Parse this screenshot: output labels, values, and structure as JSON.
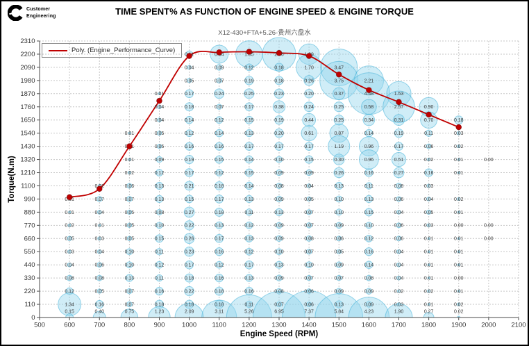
{
  "logo": {
    "line1": "Customer",
    "line2": "Engineering"
  },
  "chart_data": {
    "type": "bubble",
    "title": "TIME SPENT% AS FUNCTION OF ENGINE SPEED & ENGINE TORQUE",
    "subtitle": "X12-430+FTA+5.26-贵州六盘水",
    "xlabel": "Engine Speed (RPM)",
    "ylabel": "Torque(N.m)",
    "xlim": [
      500,
      2100
    ],
    "xtick_step": 100,
    "ylim": [
      0,
      2310
    ],
    "ytick_step": 110,
    "grid": "dashed",
    "legend_position": "top-left-inside",
    "legend_label": "Poly. (Engine_Performance_Curve)",
    "colors": {
      "curve": "#C00000",
      "marker_edge": "#8B1010",
      "bubble_fill": "#8ED5EC",
      "bubble_stroke": "#45B2D8",
      "grid": "#C6C6C6",
      "axis": "#4a4a4a",
      "tick_label": "#333333",
      "value_label": "#3C3C3C",
      "subtitle": "#595959"
    },
    "rows": [
      {
        "torque": 2200,
        "cells": [
          [
            1000,
            "0.11"
          ],
          [
            1100,
            "0.84"
          ],
          [
            1200,
            "1.85"
          ],
          [
            1300,
            "2.86"
          ],
          [
            1400,
            "1.09"
          ]
        ]
      },
      {
        "torque": 2090,
        "cells": [
          [
            1000,
            "0.04"
          ],
          [
            1100,
            "0.09"
          ],
          [
            1200,
            "0.12"
          ],
          [
            1300,
            "0.18"
          ],
          [
            1400,
            "1.70"
          ],
          [
            1500,
            "3.47"
          ]
        ]
      },
      {
        "torque": 1980,
        "cells": [
          [
            1000,
            "0.05"
          ],
          [
            1100,
            "0.07"
          ],
          [
            1200,
            "0.19"
          ],
          [
            1300,
            "0.18"
          ],
          [
            1400,
            "0.26"
          ],
          [
            1500,
            "3.75"
          ],
          [
            1600,
            "2.21"
          ]
        ]
      },
      {
        "torque": 1870,
        "cells": [
          [
            900,
            "0.01"
          ],
          [
            1000,
            "0.17"
          ],
          [
            1100,
            "0.24"
          ],
          [
            1200,
            "0.25"
          ],
          [
            1300,
            "0.23"
          ],
          [
            1400,
            "0.20"
          ],
          [
            1500,
            "0.37"
          ],
          [
            1600,
            "4.48"
          ],
          [
            1700,
            "1.53"
          ]
        ]
      },
      {
        "torque": 1760,
        "cells": [
          [
            900,
            "0.04"
          ],
          [
            1000,
            "0.18"
          ],
          [
            1100,
            "0.07"
          ],
          [
            1200,
            "0.17"
          ],
          [
            1300,
            "0.38"
          ],
          [
            1400,
            "0.24"
          ],
          [
            1500,
            "0.25"
          ],
          [
            1600,
            "0.58"
          ],
          [
            1700,
            "2.57"
          ],
          [
            1800,
            "0.90"
          ]
        ]
      },
      {
        "torque": 1650,
        "cells": [
          [
            900,
            "0.04"
          ],
          [
            1000,
            "0.14"
          ],
          [
            1100,
            "0.12"
          ],
          [
            1200,
            "0.15"
          ],
          [
            1300,
            "0.19"
          ],
          [
            1400,
            "0.44"
          ],
          [
            1500,
            "0.25"
          ],
          [
            1600,
            "0.34"
          ],
          [
            1700,
            "0.31"
          ],
          [
            1800,
            "0.70"
          ],
          [
            1900,
            "0.18"
          ]
        ]
      },
      {
        "torque": 1540,
        "cells": [
          [
            800,
            "0.01"
          ],
          [
            900,
            "0.05"
          ],
          [
            1000,
            "0.12"
          ],
          [
            1100,
            "0.14"
          ],
          [
            1200,
            "0.13"
          ],
          [
            1300,
            "0.20"
          ],
          [
            1400,
            "0.61"
          ],
          [
            1500,
            "0.87"
          ],
          [
            1600,
            "0.14"
          ],
          [
            1700,
            "0.19"
          ],
          [
            1800,
            "0.11"
          ],
          [
            1900,
            "0.03"
          ]
        ]
      },
      {
        "torque": 1430,
        "cells": [
          [
            800,
            "0.01"
          ],
          [
            900,
            "0.05"
          ],
          [
            1000,
            "0.16"
          ],
          [
            1100,
            "0.16"
          ],
          [
            1200,
            "0.17"
          ],
          [
            1300,
            "0.17"
          ],
          [
            1400,
            "0.17"
          ],
          [
            1500,
            "1.19"
          ],
          [
            1600,
            "0.96"
          ],
          [
            1700,
            "0.17"
          ],
          [
            1800,
            "0.06"
          ],
          [
            1900,
            "0.02"
          ]
        ]
      },
      {
        "torque": 1320,
        "cells": [
          [
            800,
            "0.01"
          ],
          [
            900,
            "0.09"
          ],
          [
            1000,
            "0.19"
          ],
          [
            1100,
            "0.15"
          ],
          [
            1200,
            "0.14"
          ],
          [
            1300,
            "0.10"
          ],
          [
            1400,
            "0.15"
          ],
          [
            1500,
            "0.30"
          ],
          [
            1600,
            "0.96"
          ],
          [
            1700,
            "0.51"
          ],
          [
            1800,
            "0.02"
          ],
          [
            1900,
            "0.01"
          ],
          [
            2000,
            "0.00"
          ]
        ]
      },
      {
        "torque": 1210,
        "cells": [
          [
            800,
            "0.02"
          ],
          [
            900,
            "0.12"
          ],
          [
            1000,
            "0.17"
          ],
          [
            1100,
            "0.12"
          ],
          [
            1200,
            "0.15"
          ],
          [
            1300,
            "0.09"
          ],
          [
            1400,
            "0.09"
          ],
          [
            1500,
            "0.26"
          ],
          [
            1600,
            "0.16"
          ],
          [
            1700,
            "0.27"
          ],
          [
            1800,
            "0.16"
          ],
          [
            1900,
            "0.01"
          ]
        ]
      },
      {
        "torque": 1100,
        "cells": [
          [
            700,
            "0.02"
          ],
          [
            800,
            "0.06"
          ],
          [
            900,
            "0.13"
          ],
          [
            1000,
            "0.21"
          ],
          [
            1100,
            "0.18"
          ],
          [
            1200,
            "0.14"
          ],
          [
            1300,
            "0.08"
          ],
          [
            1400,
            "0.04"
          ],
          [
            1500,
            "0.13"
          ],
          [
            1600,
            "0.11"
          ],
          [
            1700,
            "0.08"
          ],
          [
            1800,
            "0.03"
          ]
        ]
      },
      {
        "torque": 990,
        "cells": [
          [
            600,
            "0.01"
          ],
          [
            700,
            "0.07"
          ],
          [
            800,
            "0.07"
          ],
          [
            900,
            "0.13"
          ],
          [
            1000,
            "0.15"
          ],
          [
            1100,
            "0.17"
          ],
          [
            1200,
            "0.13"
          ],
          [
            1300,
            "0.09"
          ],
          [
            1400,
            "0.05"
          ],
          [
            1500,
            "0.10"
          ],
          [
            1600,
            "0.13"
          ],
          [
            1700,
            "0.06"
          ],
          [
            1800,
            "0.04"
          ],
          [
            1900,
            "0.02"
          ]
        ]
      },
      {
        "torque": 880,
        "cells": [
          [
            600,
            "0.01"
          ],
          [
            700,
            "0.04"
          ],
          [
            800,
            "0.05"
          ],
          [
            900,
            "0.08"
          ],
          [
            1000,
            "0.27"
          ],
          [
            1100,
            "0.18"
          ],
          [
            1200,
            "0.11"
          ],
          [
            1300,
            "0.13"
          ],
          [
            1400,
            "0.07"
          ],
          [
            1500,
            "0.10"
          ],
          [
            1600,
            "0.15"
          ],
          [
            1700,
            "0.04"
          ],
          [
            1800,
            "0.05"
          ],
          [
            1900,
            "0.01"
          ]
        ]
      },
      {
        "torque": 770,
        "cells": [
          [
            600,
            "0.02"
          ],
          [
            700,
            "0.01"
          ],
          [
            800,
            "0.05"
          ],
          [
            900,
            "0.10"
          ],
          [
            1000,
            "0.22"
          ],
          [
            1100,
            "0.13"
          ],
          [
            1200,
            "0.12"
          ],
          [
            1300,
            "0.09"
          ],
          [
            1400,
            "0.07"
          ],
          [
            1500,
            "0.09"
          ],
          [
            1600,
            "0.10"
          ],
          [
            1700,
            "0.06"
          ],
          [
            1800,
            "0.03"
          ],
          [
            1900,
            "0.00"
          ],
          [
            2000,
            "0.00"
          ]
        ]
      },
      {
        "torque": 660,
        "cells": [
          [
            600,
            "0.05"
          ],
          [
            700,
            "0.03"
          ],
          [
            800,
            "0.05"
          ],
          [
            900,
            "0.15"
          ],
          [
            1000,
            "0.26"
          ],
          [
            1100,
            "0.17"
          ],
          [
            1200,
            "0.13"
          ],
          [
            1300,
            "0.09"
          ],
          [
            1400,
            "0.08"
          ],
          [
            1500,
            "0.06"
          ],
          [
            1600,
            "0.12"
          ],
          [
            1700,
            "0.06"
          ],
          [
            1800,
            "0.01"
          ],
          [
            1900,
            "0.01"
          ],
          [
            2000,
            "0.00"
          ]
        ]
      },
      {
        "torque": 550,
        "cells": [
          [
            600,
            "0.03"
          ],
          [
            700,
            "0.04"
          ],
          [
            800,
            "0.10"
          ],
          [
            900,
            "0.11"
          ],
          [
            1000,
            "0.23"
          ],
          [
            1100,
            "0.16"
          ],
          [
            1200,
            "0.12"
          ],
          [
            1300,
            "0.10"
          ],
          [
            1400,
            "0.07"
          ],
          [
            1500,
            "0.05"
          ],
          [
            1600,
            "0.16"
          ],
          [
            1700,
            "0.04"
          ],
          [
            1800,
            "0.01"
          ],
          [
            1900,
            "0.01"
          ]
        ]
      },
      {
        "torque": 440,
        "cells": [
          [
            600,
            "0.04"
          ],
          [
            700,
            "0.06"
          ],
          [
            800,
            "0.10"
          ],
          [
            900,
            "0.12"
          ],
          [
            1000,
            "0.17"
          ],
          [
            1100,
            "0.12"
          ],
          [
            1200,
            "0.17"
          ],
          [
            1300,
            "0.13"
          ],
          [
            1400,
            "0.10"
          ],
          [
            1500,
            "0.09"
          ],
          [
            1600,
            "0.14"
          ],
          [
            1700,
            "0.04"
          ],
          [
            1800,
            "0.01"
          ],
          [
            1900,
            "0.01"
          ]
        ]
      },
      {
        "torque": 330,
        "cells": [
          [
            600,
            "0.08"
          ],
          [
            700,
            "0.08"
          ],
          [
            800,
            "0.13"
          ],
          [
            900,
            "0.11"
          ],
          [
            1000,
            "0.18"
          ],
          [
            1100,
            "0.16"
          ],
          [
            1200,
            "0.13"
          ],
          [
            1300,
            "0.09"
          ],
          [
            1400,
            "0.07"
          ],
          [
            1500,
            "0.07"
          ],
          [
            1600,
            "0.08"
          ],
          [
            1700,
            "0.04"
          ],
          [
            1800,
            "0.01"
          ],
          [
            1900,
            "0.00"
          ]
        ]
      },
      {
        "torque": 220,
        "cells": [
          [
            600,
            "0.12"
          ],
          [
            700,
            "0.05"
          ],
          [
            800,
            "0.07"
          ],
          [
            900,
            "0.16"
          ],
          [
            1000,
            "0.22"
          ],
          [
            1100,
            "0.18"
          ],
          [
            1200,
            "0.16"
          ],
          [
            1300,
            "0.08"
          ],
          [
            1400,
            "0.06"
          ],
          [
            1500,
            "0.09"
          ],
          [
            1600,
            "0.09"
          ],
          [
            1700,
            "0.02"
          ],
          [
            1800,
            "0.02"
          ],
          [
            1900,
            "0.01"
          ]
        ]
      },
      {
        "torque": 110,
        "cells": [
          [
            600,
            "1.34"
          ],
          [
            700,
            "0.16"
          ],
          [
            800,
            "0.07"
          ],
          [
            900,
            "0.18"
          ],
          [
            1000,
            "0.18"
          ],
          [
            1100,
            "0.18"
          ],
          [
            1200,
            "0.11"
          ],
          [
            1300,
            "0.07"
          ],
          [
            1400,
            "0.06"
          ],
          [
            1500,
            "0.13"
          ],
          [
            1600,
            "0.09"
          ],
          [
            1700,
            "0.03"
          ],
          [
            1800,
            "0.01"
          ],
          [
            1900,
            "0.02"
          ]
        ]
      },
      {
        "torque": 0,
        "cells": [
          [
            600,
            "0.15"
          ],
          [
            700,
            "0.40"
          ],
          [
            800,
            "0.75"
          ],
          [
            900,
            "1.23"
          ],
          [
            1000,
            "2.09"
          ],
          [
            1100,
            "3.11"
          ],
          [
            1200,
            "5.26"
          ],
          [
            1300,
            "6.95"
          ],
          [
            1400,
            "7.37"
          ],
          [
            1500,
            "5.84"
          ],
          [
            1600,
            "4.23"
          ],
          [
            1700,
            "1.90"
          ],
          [
            1800,
            "0.27"
          ],
          [
            1900,
            "0.02"
          ]
        ]
      }
    ],
    "curve": {
      "name": "Poly. (Engine_Performance_Curve)",
      "points": [
        [
          600,
          1005
        ],
        [
          700,
          1075
        ],
        [
          800,
          1430
        ],
        [
          900,
          1810
        ],
        [
          1000,
          2185
        ],
        [
          1100,
          2215
        ],
        [
          1200,
          2220
        ],
        [
          1300,
          2210
        ],
        [
          1400,
          2185
        ],
        [
          1500,
          2030
        ],
        [
          1600,
          1900
        ],
        [
          1700,
          1800
        ],
        [
          1800,
          1695
        ],
        [
          1900,
          1590
        ]
      ]
    }
  }
}
